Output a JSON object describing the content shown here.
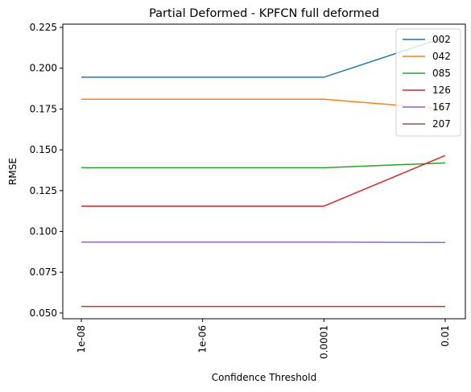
{
  "chart_data": {
    "type": "line",
    "title": "Partial Deformed - KPFCN full deformed",
    "xlabel": "Confidence Threshold",
    "ylabel": "RMSE",
    "categories": [
      "1e-08",
      "1e-06",
      "0.0001",
      "0.01"
    ],
    "ylim": [
      0.0465,
      0.227
    ],
    "yticks": [
      "0.050",
      "0.075",
      "0.100",
      "0.125",
      "0.150",
      "0.175",
      "0.200",
      "0.225"
    ],
    "grid": false,
    "legend_position": "top-right",
    "series": [
      {
        "name": "002",
        "color": "#1f77b4",
        "values": [
          0.1945,
          0.1945,
          0.1945,
          0.219
        ]
      },
      {
        "name": "042",
        "color": "#ff7f0e",
        "values": [
          0.181,
          0.181,
          0.181,
          0.175
        ]
      },
      {
        "name": "085",
        "color": "#2ca02c",
        "values": [
          0.139,
          0.139,
          0.139,
          0.142
        ]
      },
      {
        "name": "126",
        "color": "#d62728",
        "values": [
          0.1155,
          0.1155,
          0.1155,
          0.1465
        ]
      },
      {
        "name": "167",
        "color": "#9467bd",
        "values": [
          0.0935,
          0.0935,
          0.0935,
          0.0932
        ]
      },
      {
        "name": "207",
        "color": "#8c564b",
        "values": [
          0.054,
          0.054,
          0.054,
          0.054
        ]
      }
    ]
  }
}
